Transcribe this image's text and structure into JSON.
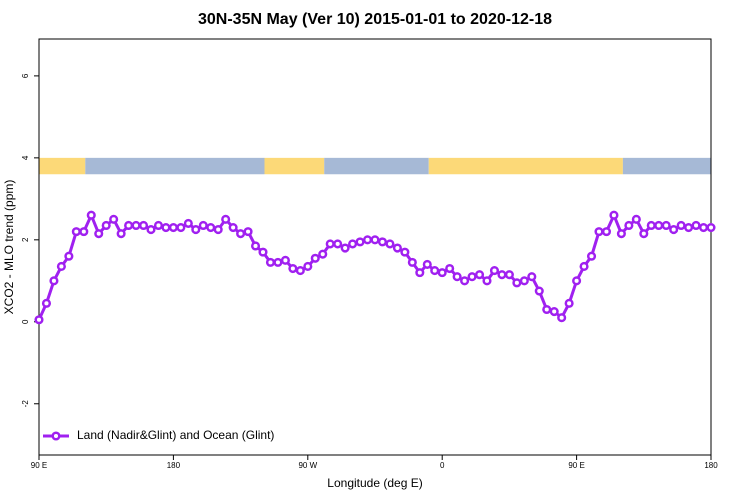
{
  "chart_data": {
    "type": "line",
    "title": "30N-35N May (Ver 10)   2015-01-01 to 2020-12-18",
    "x_label": "Longitude (deg E)",
    "y_label": "XCO2 - MLO trend (ppm)",
    "x": [
      90,
      95,
      100,
      105,
      110,
      115,
      120,
      125,
      130,
      135,
      140,
      145,
      150,
      155,
      160,
      165,
      170,
      175,
      180,
      185,
      190,
      195,
      200,
      205,
      210,
      215,
      220,
      225,
      230,
      235,
      240,
      245,
      250,
      255,
      260,
      265,
      270,
      275,
      280,
      285,
      290,
      295,
      300,
      305,
      310,
      315,
      320,
      325,
      330,
      335,
      340,
      345,
      350,
      355,
      360,
      365,
      370,
      375,
      380,
      385,
      390,
      395,
      400,
      405,
      410,
      415,
      420,
      425,
      430,
      435,
      440,
      445,
      450,
      455,
      460,
      465,
      470,
      475,
      480,
      485,
      490,
      495,
      500,
      505,
      510,
      515,
      520,
      525,
      530,
      535,
      540
    ],
    "series": [
      {
        "name": "Land (Nadir&Glint) and Ocean (Glint)",
        "color": "#a020f0",
        "values": [
          0.05,
          0.45,
          1.0,
          1.35,
          1.6,
          2.2,
          2.2,
          2.6,
          2.15,
          2.35,
          2.5,
          2.15,
          2.35,
          2.35,
          2.35,
          2.25,
          2.35,
          2.3,
          2.3,
          2.3,
          2.4,
          2.25,
          2.35,
          2.3,
          2.25,
          2.5,
          2.3,
          2.15,
          2.2,
          1.85,
          1.7,
          1.45,
          1.45,
          1.5,
          1.3,
          1.25,
          1.35,
          1.55,
          1.65,
          1.9,
          1.9,
          1.8,
          1.9,
          1.95,
          2.0,
          2.0,
          1.95,
          1.9,
          1.8,
          1.7,
          1.45,
          1.2,
          1.4,
          1.25,
          1.2,
          1.3,
          1.1,
          1.0,
          1.1,
          1.15,
          1.0,
          1.25,
          1.15,
          1.15,
          0.95,
          1.0,
          1.1,
          0.75,
          0.3,
          0.25,
          0.1,
          0.45,
          1.0,
          1.35,
          1.6,
          2.2,
          2.2,
          2.6,
          2.15,
          2.35,
          2.5,
          2.15,
          2.35,
          2.35,
          2.35,
          2.25,
          2.35,
          2.3,
          2.35,
          2.3,
          2.3
        ]
      }
    ],
    "surface_band": {
      "ylim": [
        3.6,
        4.0
      ],
      "segments": [
        {
          "x": [
            90,
            121
          ],
          "color": "#fcd978"
        },
        {
          "x": [
            121,
            241
          ],
          "color": "#a6b9d6"
        },
        {
          "x": [
            241,
            281
          ],
          "color": "#fcd978"
        },
        {
          "x": [
            281,
            351
          ],
          "color": "#a6b9d6"
        },
        {
          "x": [
            351,
            481
          ],
          "color": "#fcd978"
        },
        {
          "x": [
            481,
            540
          ],
          "color": "#a6b9d6"
        }
      ]
    },
    "xlim": [
      90,
      540
    ],
    "xticks": [
      {
        "value": 90,
        "label": "90 E"
      },
      180,
      {
        "value": 270,
        "label": "90 W"
      },
      {
        "value": 360,
        "label": "0"
      },
      {
        "value": 450,
        "label": "90 E"
      },
      {
        "value": 540,
        "label": "180"
      }
    ],
    "ylim": [
      -3.25,
      6.9
    ],
    "yticks": [
      -2,
      0,
      2,
      4,
      6
    ],
    "legend": "bottom-left"
  }
}
